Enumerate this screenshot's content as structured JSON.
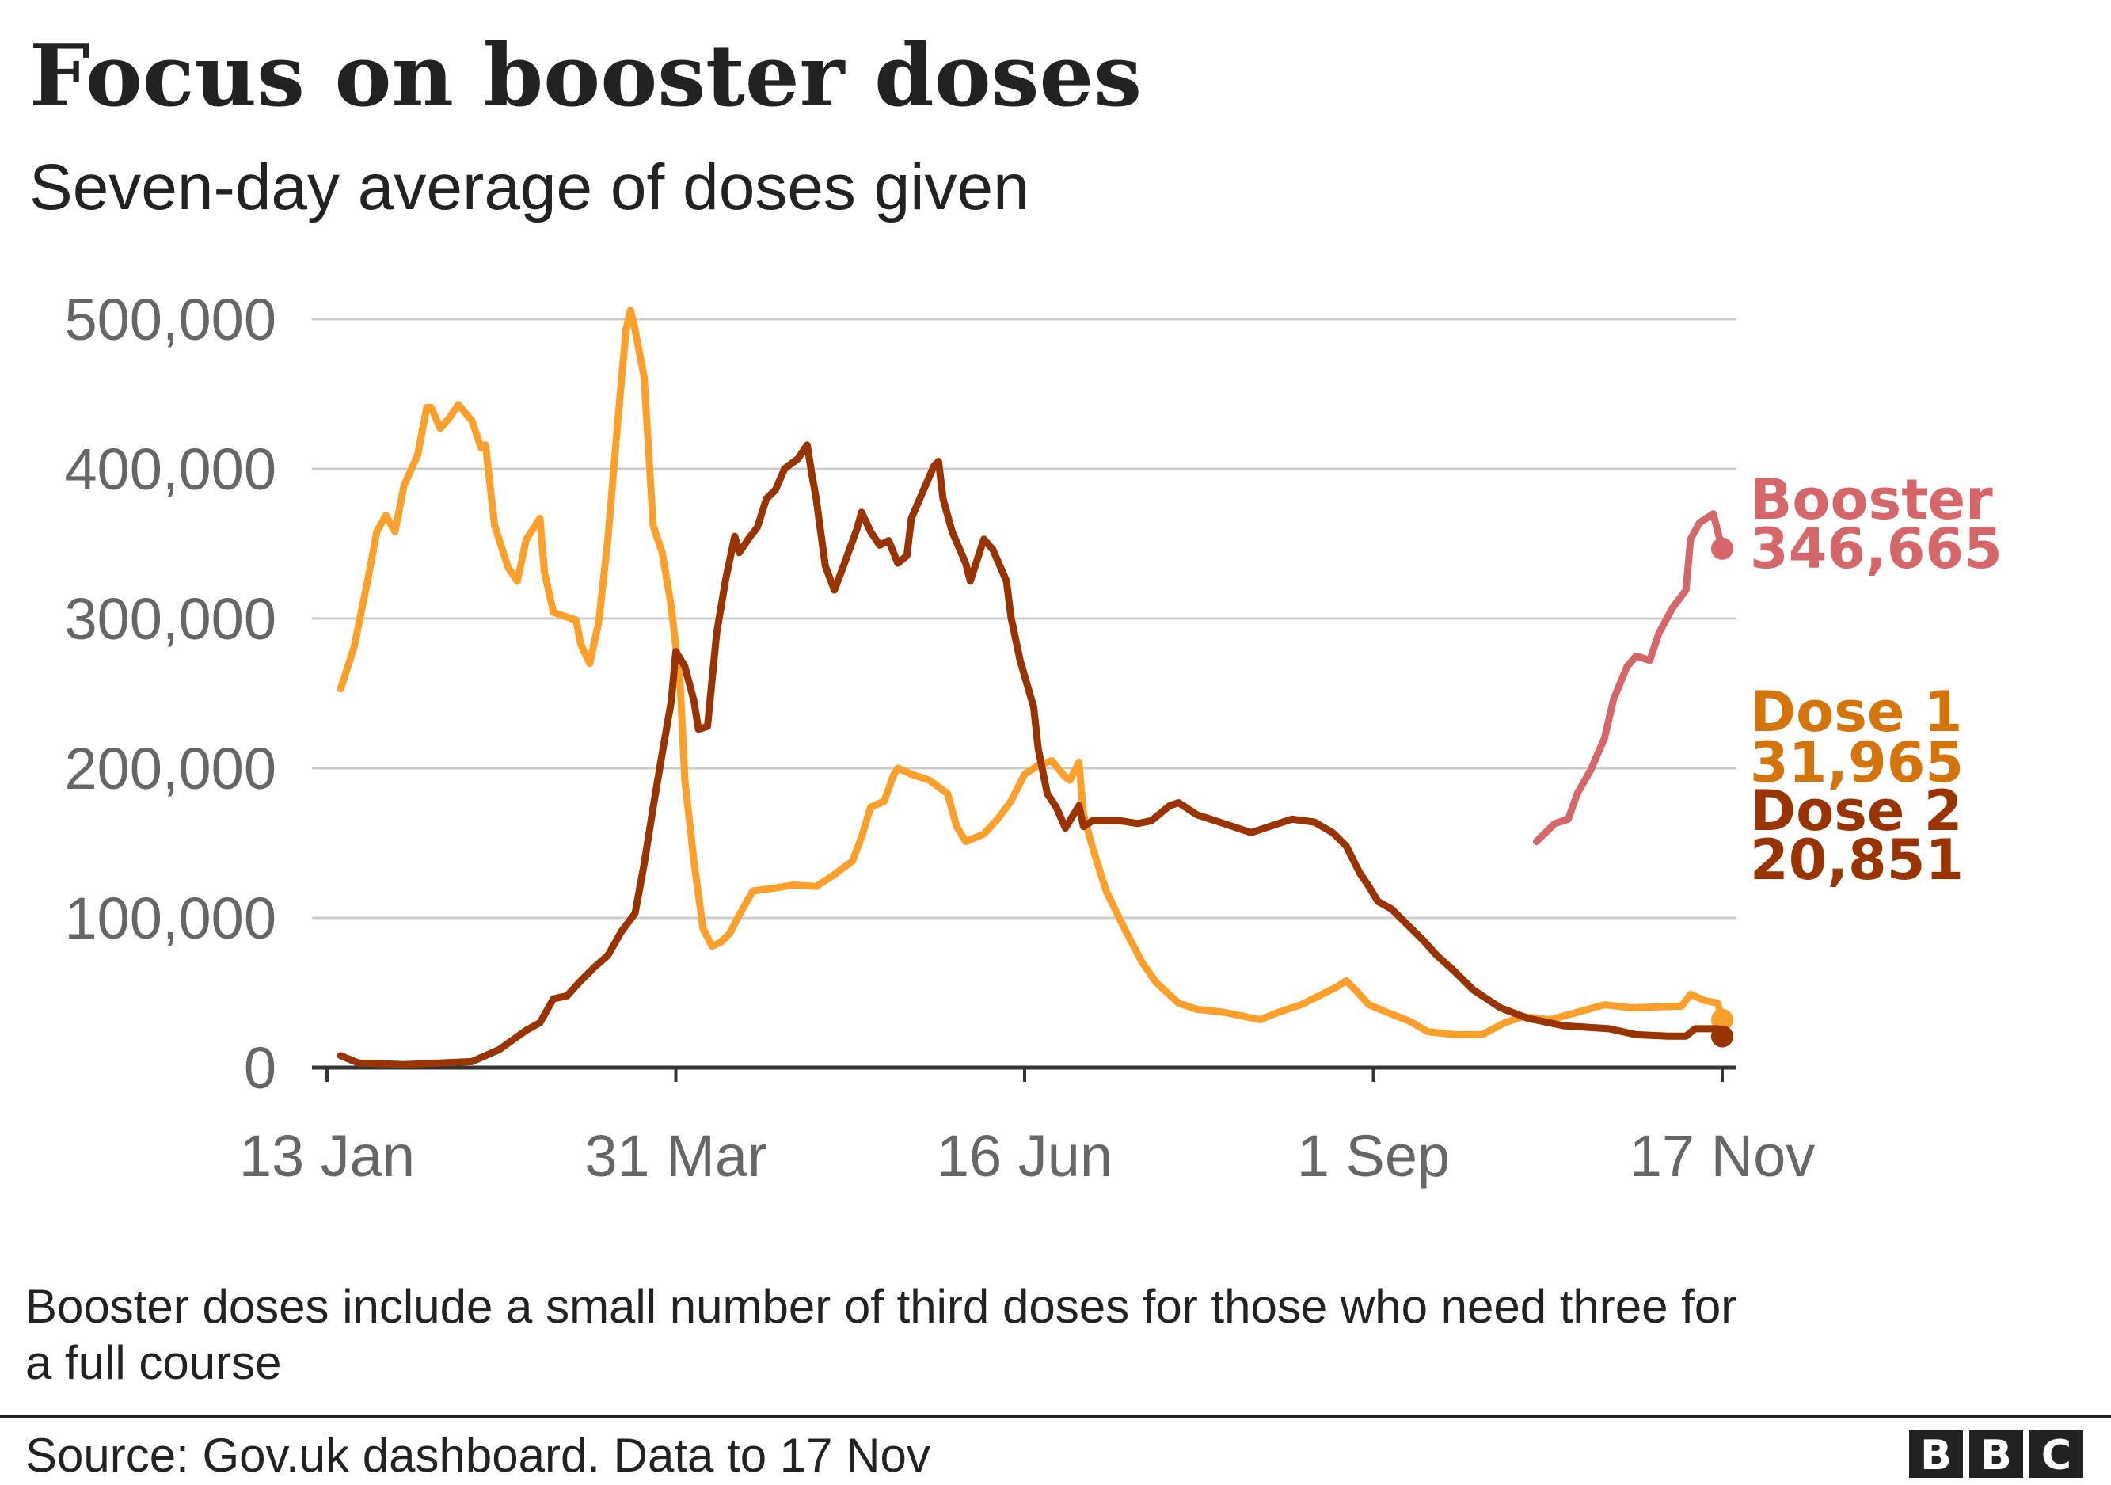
{
  "header": {
    "title": "Focus on booster doses",
    "subtitle": "Seven-day average of doses given"
  },
  "footer": {
    "note_line1": "Booster doses include a small number of third doses for those who need three for",
    "note_line2": "a full course",
    "source": "Source: Gov.uk dashboard. Data to 17 Nov",
    "logo_text": "BBC"
  },
  "chart_data": {
    "type": "line",
    "title": "Focus on booster doses",
    "subtitle": "Seven-day average of doses given",
    "xlabel": "",
    "ylabel": "",
    "xlim": [
      "2021-01-13",
      "2021-11-17"
    ],
    "ylim": [
      0,
      500000
    ],
    "grid": true,
    "legend": "direct labels at line ends (right)",
    "y_ticks": [
      0,
      100000,
      200000,
      300000,
      400000,
      500000
    ],
    "y_tick_labels": [
      "0",
      "100,000",
      "200,000",
      "300,000",
      "400,000",
      "500,000"
    ],
    "x_ticks": [
      "2021-01-13",
      "2021-03-31",
      "2021-06-16",
      "2021-09-01",
      "2021-11-17"
    ],
    "x_tick_labels": [
      "13 Jan",
      "31 Mar",
      "16 Jun",
      "1 Sep",
      "17 Nov"
    ],
    "series": [
      {
        "name": "Dose 1",
        "end_label": "31,965",
        "color": "#fd9f2b",
        "label_color": "#d4740d",
        "points": [
          [
            "2021-01-16",
            253000
          ],
          [
            "2021-01-19",
            281000
          ],
          [
            "2021-01-22",
            326000
          ],
          [
            "2021-01-24",
            358000
          ],
          [
            "2021-01-26",
            369000
          ],
          [
            "2021-01-28",
            358000
          ],
          [
            "2021-01-30",
            389000
          ],
          [
            "2021-02-02",
            409000
          ],
          [
            "2021-02-04",
            441000
          ],
          [
            "2021-02-05",
            441000
          ],
          [
            "2021-02-07",
            427000
          ],
          [
            "2021-02-09",
            434000
          ],
          [
            "2021-02-11",
            443000
          ],
          [
            "2021-02-14",
            432000
          ],
          [
            "2021-02-16",
            414000
          ],
          [
            "2021-02-17",
            416000
          ],
          [
            "2021-02-19",
            362000
          ],
          [
            "2021-02-22",
            334000
          ],
          [
            "2021-02-24",
            325000
          ],
          [
            "2021-02-26",
            353000
          ],
          [
            "2021-03-01",
            367000
          ],
          [
            "2021-03-02",
            331000
          ],
          [
            "2021-03-04",
            304000
          ],
          [
            "2021-03-07",
            301000
          ],
          [
            "2021-03-09",
            299000
          ],
          [
            "2021-03-10",
            283000
          ],
          [
            "2021-03-12",
            270000
          ],
          [
            "2021-03-14",
            298000
          ],
          [
            "2021-03-16",
            353000
          ],
          [
            "2021-03-18",
            425000
          ],
          [
            "2021-03-20",
            493000
          ],
          [
            "2021-03-21",
            506000
          ],
          [
            "2021-03-22",
            493000
          ],
          [
            "2021-03-24",
            461000
          ],
          [
            "2021-03-26",
            362000
          ],
          [
            "2021-03-28",
            344000
          ],
          [
            "2021-03-30",
            308000
          ],
          [
            "2021-04-01",
            254000
          ],
          [
            "2021-04-02",
            192000
          ],
          [
            "2021-04-04",
            138000
          ],
          [
            "2021-04-06",
            93000
          ],
          [
            "2021-04-08",
            81000
          ],
          [
            "2021-04-10",
            84000
          ],
          [
            "2021-04-12",
            90000
          ],
          [
            "2021-04-14",
            102000
          ],
          [
            "2021-04-17",
            118000
          ],
          [
            "2021-04-22",
            120000
          ],
          [
            "2021-04-26",
            122000
          ],
          [
            "2021-05-01",
            121000
          ],
          [
            "2021-05-05",
            129000
          ],
          [
            "2021-05-09",
            138000
          ],
          [
            "2021-05-11",
            154000
          ],
          [
            "2021-05-13",
            174000
          ],
          [
            "2021-05-16",
            178000
          ],
          [
            "2021-05-18",
            195000
          ],
          [
            "2021-05-19",
            200000
          ],
          [
            "2021-05-22",
            196000
          ],
          [
            "2021-05-26",
            192000
          ],
          [
            "2021-05-30",
            183000
          ],
          [
            "2021-06-01",
            161000
          ],
          [
            "2021-06-03",
            151000
          ],
          [
            "2021-06-07",
            156000
          ],
          [
            "2021-06-10",
            166000
          ],
          [
            "2021-06-13",
            178000
          ],
          [
            "2021-06-16",
            196000
          ],
          [
            "2021-06-19",
            202000
          ],
          [
            "2021-06-22",
            205000
          ],
          [
            "2021-06-25",
            194000
          ],
          [
            "2021-06-26",
            192000
          ],
          [
            "2021-06-28",
            204000
          ],
          [
            "2021-06-29",
            169000
          ],
          [
            "2021-07-01",
            147000
          ],
          [
            "2021-07-04",
            118000
          ],
          [
            "2021-07-08",
            93000
          ],
          [
            "2021-07-12",
            70000
          ],
          [
            "2021-07-15",
            57000
          ],
          [
            "2021-07-20",
            43000
          ],
          [
            "2021-07-24",
            39000
          ],
          [
            "2021-07-30",
            37000
          ],
          [
            "2021-08-07",
            32000
          ],
          [
            "2021-08-11",
            37000
          ],
          [
            "2021-08-16",
            42000
          ],
          [
            "2021-08-20",
            48000
          ],
          [
            "2021-08-24",
            54000
          ],
          [
            "2021-08-26",
            58000
          ],
          [
            "2021-08-28",
            52000
          ],
          [
            "2021-08-31",
            42000
          ],
          [
            "2021-09-04",
            37000
          ],
          [
            "2021-09-09",
            31000
          ],
          [
            "2021-09-13",
            24000
          ],
          [
            "2021-09-19",
            22000
          ],
          [
            "2021-09-25",
            22000
          ],
          [
            "2021-09-30",
            30000
          ],
          [
            "2021-10-04",
            34000
          ],
          [
            "2021-10-10",
            32000
          ],
          [
            "2021-10-16",
            37000
          ],
          [
            "2021-10-22",
            42000
          ],
          [
            "2021-10-28",
            40000
          ],
          [
            "2021-11-08",
            41000
          ],
          [
            "2021-11-10",
            49000
          ],
          [
            "2021-11-13",
            45000
          ],
          [
            "2021-11-16",
            43000
          ],
          [
            "2021-11-17",
            31965
          ]
        ]
      },
      {
        "name": "Dose 2",
        "end_label": "20,851",
        "color": "#993300",
        "label_color": "#993300",
        "points": [
          [
            "2021-01-16",
            8000
          ],
          [
            "2021-01-20",
            3000
          ],
          [
            "2021-01-30",
            2000
          ],
          [
            "2021-02-14",
            4000
          ],
          [
            "2021-02-20",
            12000
          ],
          [
            "2021-02-26",
            25000
          ],
          [
            "2021-03-01",
            30000
          ],
          [
            "2021-03-04",
            46000
          ],
          [
            "2021-03-07",
            48000
          ],
          [
            "2021-03-10",
            58000
          ],
          [
            "2021-03-13",
            67000
          ],
          [
            "2021-03-16",
            75000
          ],
          [
            "2021-03-19",
            91000
          ],
          [
            "2021-03-22",
            103000
          ],
          [
            "2021-03-24",
            136000
          ],
          [
            "2021-03-26",
            174000
          ],
          [
            "2021-03-28",
            210000
          ],
          [
            "2021-03-30",
            245000
          ],
          [
            "2021-03-31",
            278000
          ],
          [
            "2021-04-02",
            268000
          ],
          [
            "2021-04-04",
            245000
          ],
          [
            "2021-04-05",
            226000
          ],
          [
            "2021-04-07",
            228000
          ],
          [
            "2021-04-09",
            290000
          ],
          [
            "2021-04-11",
            326000
          ],
          [
            "2021-04-13",
            355000
          ],
          [
            "2021-04-14",
            344000
          ],
          [
            "2021-04-16",
            353000
          ],
          [
            "2021-04-18",
            361000
          ],
          [
            "2021-04-20",
            380000
          ],
          [
            "2021-04-22",
            386000
          ],
          [
            "2021-04-24",
            400000
          ],
          [
            "2021-04-27",
            407000
          ],
          [
            "2021-04-29",
            416000
          ],
          [
            "2021-04-30",
            397000
          ],
          [
            "2021-05-01",
            380000
          ],
          [
            "2021-05-03",
            335000
          ],
          [
            "2021-05-05",
            319000
          ],
          [
            "2021-05-07",
            335000
          ],
          [
            "2021-05-10",
            360000
          ],
          [
            "2021-05-11",
            371000
          ],
          [
            "2021-05-13",
            358000
          ],
          [
            "2021-05-15",
            349000
          ],
          [
            "2021-05-17",
            352000
          ],
          [
            "2021-05-19",
            337000
          ],
          [
            "2021-05-21",
            342000
          ],
          [
            "2021-05-22",
            367000
          ],
          [
            "2021-05-25",
            388000
          ],
          [
            "2021-05-27",
            402000
          ],
          [
            "2021-05-28",
            405000
          ],
          [
            "2021-05-29",
            380000
          ],
          [
            "2021-05-31",
            358000
          ],
          [
            "2021-06-03",
            337000
          ],
          [
            "2021-06-04",
            325000
          ],
          [
            "2021-06-07",
            353000
          ],
          [
            "2021-06-09",
            346000
          ],
          [
            "2021-06-12",
            325000
          ],
          [
            "2021-06-13",
            301000
          ],
          [
            "2021-06-15",
            272000
          ],
          [
            "2021-06-18",
            241000
          ],
          [
            "2021-06-19",
            213000
          ],
          [
            "2021-06-21",
            183000
          ],
          [
            "2021-06-23",
            174000
          ],
          [
            "2021-06-25",
            160000
          ],
          [
            "2021-06-28",
            175000
          ],
          [
            "2021-06-29",
            161000
          ],
          [
            "2021-07-01",
            165000
          ],
          [
            "2021-07-07",
            165000
          ],
          [
            "2021-07-11",
            163000
          ],
          [
            "2021-07-14",
            165000
          ],
          [
            "2021-07-18",
            175000
          ],
          [
            "2021-07-20",
            177000
          ],
          [
            "2021-07-24",
            169000
          ],
          [
            "2021-07-30",
            163000
          ],
          [
            "2021-08-05",
            157000
          ],
          [
            "2021-08-11",
            163000
          ],
          [
            "2021-08-14",
            166000
          ],
          [
            "2021-08-19",
            164000
          ],
          [
            "2021-08-23",
            157000
          ],
          [
            "2021-08-26",
            148000
          ],
          [
            "2021-08-29",
            130000
          ],
          [
            "2021-08-31",
            121000
          ],
          [
            "2021-09-02",
            111000
          ],
          [
            "2021-09-05",
            106000
          ],
          [
            "2021-09-08",
            97000
          ],
          [
            "2021-09-12",
            85000
          ],
          [
            "2021-09-15",
            75000
          ],
          [
            "2021-09-19",
            64000
          ],
          [
            "2021-09-23",
            52000
          ],
          [
            "2021-09-29",
            40000
          ],
          [
            "2021-10-05",
            33000
          ],
          [
            "2021-10-13",
            28000
          ],
          [
            "2021-10-23",
            26000
          ],
          [
            "2021-10-29",
            22000
          ],
          [
            "2021-11-05",
            21000
          ],
          [
            "2021-11-09",
            21000
          ],
          [
            "2021-11-11",
            26000
          ],
          [
            "2021-11-16",
            26000
          ],
          [
            "2021-11-17",
            20851
          ]
        ]
      },
      {
        "name": "Booster",
        "end_label": "346,665",
        "color": "#d5676b",
        "label_color": "#d5676b",
        "points": [
          [
            "2021-10-07",
            151000
          ],
          [
            "2021-10-09",
            157000
          ],
          [
            "2021-10-11",
            163000
          ],
          [
            "2021-10-14",
            166000
          ],
          [
            "2021-10-16",
            183000
          ],
          [
            "2021-10-19",
            199000
          ],
          [
            "2021-10-22",
            220000
          ],
          [
            "2021-10-24",
            246000
          ],
          [
            "2021-10-27",
            268000
          ],
          [
            "2021-10-29",
            275000
          ],
          [
            "2021-11-01",
            272000
          ],
          [
            "2021-11-03",
            290000
          ],
          [
            "2021-11-06",
            307000
          ],
          [
            "2021-11-09",
            319000
          ],
          [
            "2021-11-10",
            353000
          ],
          [
            "2021-11-12",
            364000
          ],
          [
            "2021-11-15",
            370000
          ],
          [
            "2021-11-17",
            346665
          ]
        ]
      }
    ]
  }
}
